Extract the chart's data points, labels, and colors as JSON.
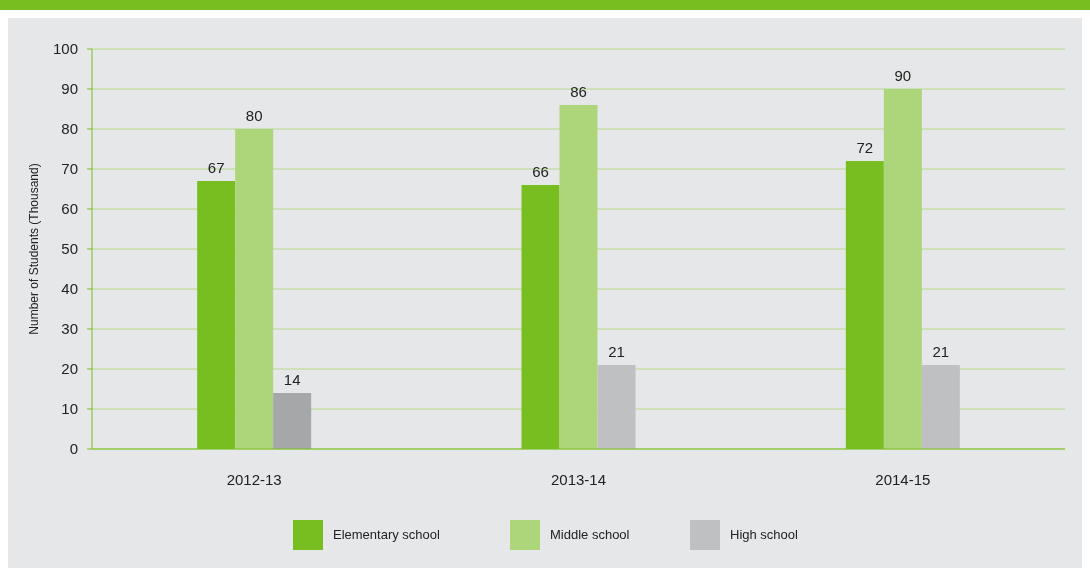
{
  "chart_data": {
    "type": "bar",
    "ylabel": "Number of Students (Thousand)",
    "categories": [
      "2012-13",
      "2013-14",
      "2014-15"
    ],
    "series": [
      {
        "name": "Elementary school",
        "color": "#78be20",
        "values": [
          67,
          66,
          72
        ]
      },
      {
        "name": "Middle school",
        "color": "#add67a",
        "values": [
          80,
          86,
          90
        ]
      },
      {
        "name": "High school",
        "color": "#bfc0c2",
        "colors": [
          "#a6a7a9",
          "#bfc0c2",
          "#bfc0c2"
        ],
        "values": [
          14,
          21,
          21
        ]
      }
    ],
    "ylim": [
      0,
      100
    ],
    "yticks": [
      0,
      10,
      20,
      30,
      40,
      50,
      60,
      70,
      80,
      90,
      100
    ],
    "grid": "y",
    "legend": "bottom",
    "data_labels": true
  }
}
